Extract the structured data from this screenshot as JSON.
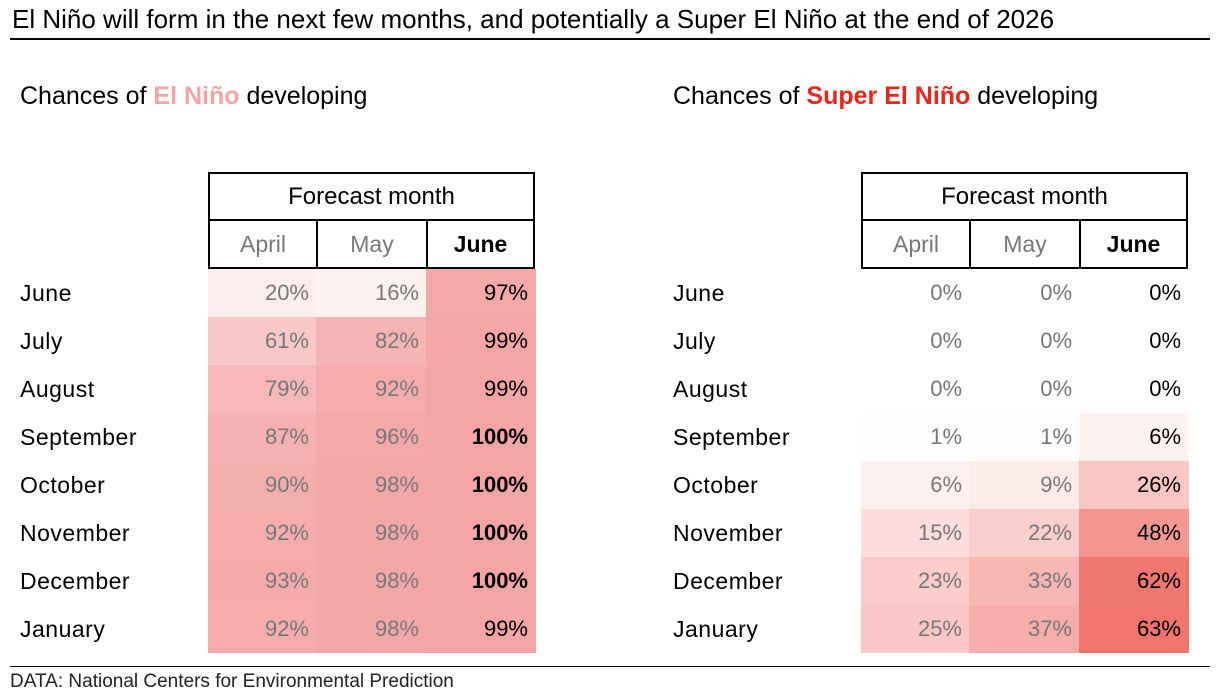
{
  "title": "El Niño will form in the next few months, and potentially a Super El Niño at the end of 2026",
  "source": "DATA: National Centers for Environmental Prediction",
  "colors": {
    "elnino_label": "#f4a6a6",
    "super_label": "#e8261c",
    "elnino_scale_max": "#f4a5a5",
    "super_scale_max": "#e8241a",
    "muted_text": "#777777"
  },
  "chart_data": [
    {
      "type": "table",
      "subtitle_prefix": "Chances of ",
      "subtitle_highlight": "El Niño",
      "subtitle_suffix": " developing",
      "header": "Forecast month",
      "columns": [
        "April",
        "May",
        "June"
      ],
      "rows": [
        "June",
        "July",
        "August",
        "September",
        "October",
        "November",
        "December",
        "January"
      ],
      "values": [
        [
          20,
          16,
          97
        ],
        [
          61,
          82,
          99
        ],
        [
          79,
          92,
          99
        ],
        [
          87,
          96,
          100
        ],
        [
          90,
          98,
          100
        ],
        [
          92,
          98,
          100
        ],
        [
          93,
          98,
          100
        ],
        [
          92,
          98,
          99
        ]
      ],
      "unit": "%"
    },
    {
      "type": "table",
      "subtitle_prefix": "Chances of ",
      "subtitle_highlight": "Super El Niño",
      "subtitle_suffix": " developing",
      "header": "Forecast month",
      "columns": [
        "April",
        "May",
        "June"
      ],
      "rows": [
        "June",
        "July",
        "August",
        "September",
        "October",
        "November",
        "December",
        "January"
      ],
      "values": [
        [
          0,
          0,
          0
        ],
        [
          0,
          0,
          0
        ],
        [
          0,
          0,
          0
        ],
        [
          1,
          1,
          6
        ],
        [
          6,
          9,
          26
        ],
        [
          15,
          22,
          48
        ],
        [
          23,
          33,
          62
        ],
        [
          25,
          37,
          63
        ]
      ],
      "unit": "%"
    }
  ]
}
